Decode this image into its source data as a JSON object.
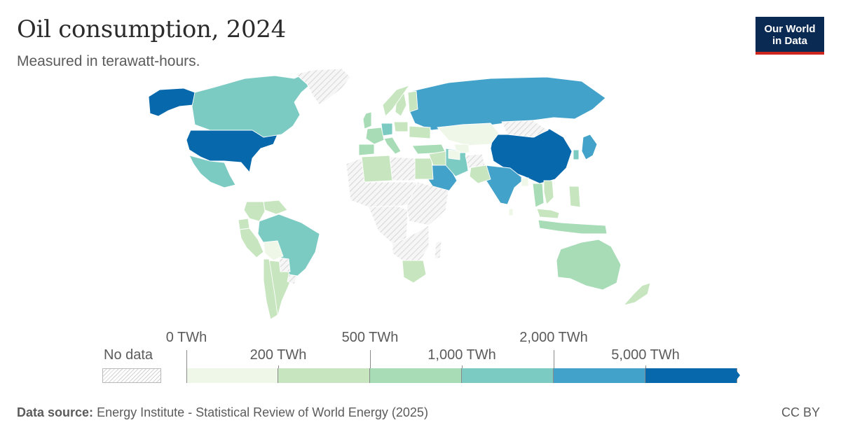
{
  "header": {
    "title": "Oil consumption, 2024",
    "subtitle": "Measured in terawatt-hours.",
    "logo_line1": "Our World",
    "logo_line2": "in Data"
  },
  "legend": {
    "no_data_label": "No data",
    "bins": [
      {
        "from": 0,
        "to": 200,
        "color": "#eef7e8"
      },
      {
        "from": 200,
        "to": 500,
        "color": "#c7e6bf"
      },
      {
        "from": 500,
        "to": 1000,
        "color": "#a7dcb6"
      },
      {
        "from": 1000,
        "to": 2000,
        "color": "#7bcbc3"
      },
      {
        "from": 2000,
        "to": 5000,
        "color": "#43a2ca"
      },
      {
        "from": 5000,
        "to": null,
        "color": "#0868ac"
      }
    ],
    "ticks": [
      {
        "label": "0 TWh",
        "row": "upper"
      },
      {
        "label": "200 TWh",
        "row": "lower"
      },
      {
        "label": "500 TWh",
        "row": "upper"
      },
      {
        "label": "1,000 TWh",
        "row": "lower"
      },
      {
        "label": "2,000 TWh",
        "row": "upper"
      },
      {
        "label": "5,000 TWh",
        "row": "lower"
      }
    ]
  },
  "footer": {
    "source_label": "Data source:",
    "source_text": "Energy Institute - Statistical Review of World Energy (2025)",
    "license": "CC BY"
  },
  "chart_data": {
    "type": "choropleth",
    "year": 2024,
    "unit": "TWh",
    "no_data_color": "#d2d2d2",
    "regions": [
      {
        "name": "United States",
        "bin": 5
      },
      {
        "name": "China",
        "bin": 5
      },
      {
        "name": "Alaska (United States)",
        "bin": 5
      },
      {
        "name": "Russia",
        "bin": 4
      },
      {
        "name": "India",
        "bin": 4
      },
      {
        "name": "Saudi Arabia",
        "bin": 4
      },
      {
        "name": "Japan",
        "bin": 4
      },
      {
        "name": "Canada",
        "bin": 3
      },
      {
        "name": "Brazil",
        "bin": 3
      },
      {
        "name": "Mexico",
        "bin": 3
      },
      {
        "name": "Iran",
        "bin": 3
      },
      {
        "name": "South Korea",
        "bin": 3
      },
      {
        "name": "Germany",
        "bin": 3
      },
      {
        "name": "Australia",
        "bin": 2
      },
      {
        "name": "Indonesia",
        "bin": 2
      },
      {
        "name": "Thailand",
        "bin": 2
      },
      {
        "name": "Turkey",
        "bin": 2
      },
      {
        "name": "France",
        "bin": 2
      },
      {
        "name": "Spain",
        "bin": 2
      },
      {
        "name": "Italy",
        "bin": 2
      },
      {
        "name": "United Kingdom",
        "bin": 2
      },
      {
        "name": "Egypt",
        "bin": 1
      },
      {
        "name": "Algeria",
        "bin": 1
      },
      {
        "name": "South Africa",
        "bin": 1
      },
      {
        "name": "Argentina",
        "bin": 1
      },
      {
        "name": "Chile",
        "bin": 1
      },
      {
        "name": "Colombia",
        "bin": 1
      },
      {
        "name": "Venezuela",
        "bin": 1
      },
      {
        "name": "Ecuador",
        "bin": 1
      },
      {
        "name": "Peru",
        "bin": 1
      },
      {
        "name": "Pakistan",
        "bin": 1
      },
      {
        "name": "Iraq",
        "bin": 1
      },
      {
        "name": "Vietnam",
        "bin": 1
      },
      {
        "name": "Malaysia",
        "bin": 1
      },
      {
        "name": "Philippines",
        "bin": 1
      },
      {
        "name": "Poland",
        "bin": 1
      },
      {
        "name": "Ukraine",
        "bin": 1
      },
      {
        "name": "Sweden",
        "bin": 1
      },
      {
        "name": "Norway",
        "bin": 1
      },
      {
        "name": "Finland",
        "bin": 1
      },
      {
        "name": "New Zealand",
        "bin": 1
      },
      {
        "name": "Kazakhstan",
        "bin": 0
      },
      {
        "name": "Uzbekistan",
        "bin": 0
      },
      {
        "name": "Turkmenistan",
        "bin": 0
      },
      {
        "name": "Bolivia",
        "bin": 0
      },
      {
        "name": "Sri Lanka",
        "bin": 0
      },
      {
        "name": "Bangladesh",
        "bin": 0
      },
      {
        "name": "Greenland",
        "bin": null
      },
      {
        "name": "Mongolia",
        "bin": null
      },
      {
        "name": "Afghanistan",
        "bin": null
      },
      {
        "name": "Libya",
        "bin": null
      },
      {
        "name": "Sahel / West Africa",
        "bin": null
      },
      {
        "name": "Central Africa",
        "bin": null
      },
      {
        "name": "East Africa",
        "bin": null
      },
      {
        "name": "Southern Africa",
        "bin": null
      },
      {
        "name": "Madagascar",
        "bin": null
      },
      {
        "name": "Paraguay",
        "bin": null
      },
      {
        "name": "Uruguay",
        "bin": null
      }
    ]
  }
}
